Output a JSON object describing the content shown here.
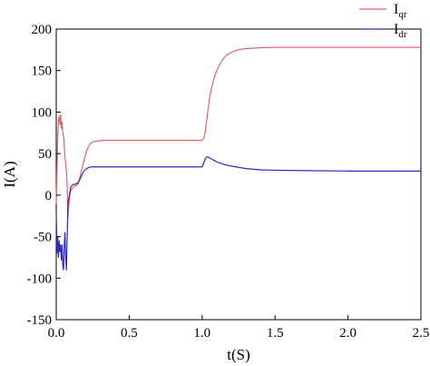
{
  "chart_data": {
    "type": "line",
    "xlabel": "t(S)",
    "ylabel": "I(A)",
    "xlim": [
      0,
      2.5
    ],
    "ylim": [
      -150,
      200
    ],
    "xticks": [
      0.0,
      0.5,
      1.0,
      1.5,
      2.0,
      2.5
    ],
    "xtick_labels": [
      "0.0",
      "0.5",
      "1.0",
      "1.5",
      "2.0",
      "2.5"
    ],
    "yticks": [
      -150,
      -100,
      -50,
      0,
      50,
      100,
      150,
      200
    ],
    "ytick_labels": [
      "-150",
      "-100",
      "-50",
      "0",
      "50",
      "100",
      "150",
      "200"
    ],
    "grid": false,
    "legend_position": "top-right",
    "series": [
      {
        "name": "Iqr",
        "name_main": "I",
        "name_sub": "qr",
        "color": "#e06666",
        "x": [
          0.0,
          0.005,
          0.01,
          0.015,
          0.02,
          0.025,
          0.03,
          0.035,
          0.04,
          0.045,
          0.05,
          0.055,
          0.06,
          0.065,
          0.07,
          0.075,
          0.08,
          0.085,
          0.09,
          0.095,
          0.1,
          0.11,
          0.12,
          0.13,
          0.14,
          0.15,
          0.16,
          0.17,
          0.18,
          0.19,
          0.2,
          0.21,
          0.22,
          0.23,
          0.24,
          0.25,
          0.27,
          0.3,
          0.35,
          0.4,
          0.5,
          0.6,
          0.7,
          0.8,
          0.9,
          1.0,
          1.01,
          1.02,
          1.03,
          1.04,
          1.05,
          1.06,
          1.08,
          1.1,
          1.12,
          1.14,
          1.16,
          1.18,
          1.2,
          1.23,
          1.26,
          1.3,
          1.35,
          1.4,
          1.5,
          1.6,
          1.8,
          2.0,
          2.2,
          2.5
        ],
        "y": [
          -10,
          30,
          70,
          90,
          95,
          85,
          97,
          80,
          88,
          75,
          70,
          60,
          45,
          38,
          30,
          10,
          -28,
          -15,
          -5,
          2,
          5,
          8,
          10,
          11,
          12,
          14,
          20,
          28,
          35,
          42,
          48,
          54,
          58,
          61,
          63,
          64,
          65,
          65.5,
          66,
          66,
          66,
          66,
          66,
          66,
          66,
          66,
          68,
          75,
          88,
          102,
          115,
          126,
          140,
          150,
          157,
          163,
          167,
          170,
          172,
          174,
          175.5,
          176.5,
          177,
          177.5,
          178,
          178,
          178,
          178,
          178,
          178
        ]
      },
      {
        "name": "Idr",
        "name_main": "I",
        "name_sub": "dr",
        "color": "#2b2bbf",
        "x": [
          0.0,
          0.005,
          0.01,
          0.015,
          0.02,
          0.025,
          0.03,
          0.035,
          0.04,
          0.045,
          0.05,
          0.055,
          0.06,
          0.065,
          0.07,
          0.075,
          0.08,
          0.085,
          0.09,
          0.095,
          0.1,
          0.11,
          0.12,
          0.13,
          0.14,
          0.15,
          0.16,
          0.17,
          0.18,
          0.19,
          0.2,
          0.21,
          0.22,
          0.23,
          0.24,
          0.25,
          0.27,
          0.3,
          0.35,
          0.4,
          0.5,
          0.6,
          0.7,
          0.8,
          0.9,
          1.0,
          1.01,
          1.02,
          1.03,
          1.04,
          1.05,
          1.06,
          1.08,
          1.1,
          1.15,
          1.2,
          1.3,
          1.4,
          1.5,
          1.7,
          2.0,
          2.2,
          2.5
        ],
        "y": [
          -20,
          -70,
          -50,
          -75,
          -55,
          -68,
          -60,
          -78,
          -60,
          -85,
          -90,
          -60,
          -45,
          -75,
          -90,
          -50,
          -10,
          -5,
          0,
          5,
          10,
          12,
          13,
          13,
          14,
          15,
          18,
          22,
          26,
          29,
          31,
          32,
          33,
          33.5,
          34,
          34,
          34,
          34,
          34,
          34,
          34,
          34,
          34,
          34,
          34,
          34,
          38,
          43,
          46,
          46,
          45,
          44,
          42,
          40,
          37,
          35,
          32,
          30.5,
          30,
          29.5,
          29,
          29,
          29
        ]
      }
    ]
  }
}
